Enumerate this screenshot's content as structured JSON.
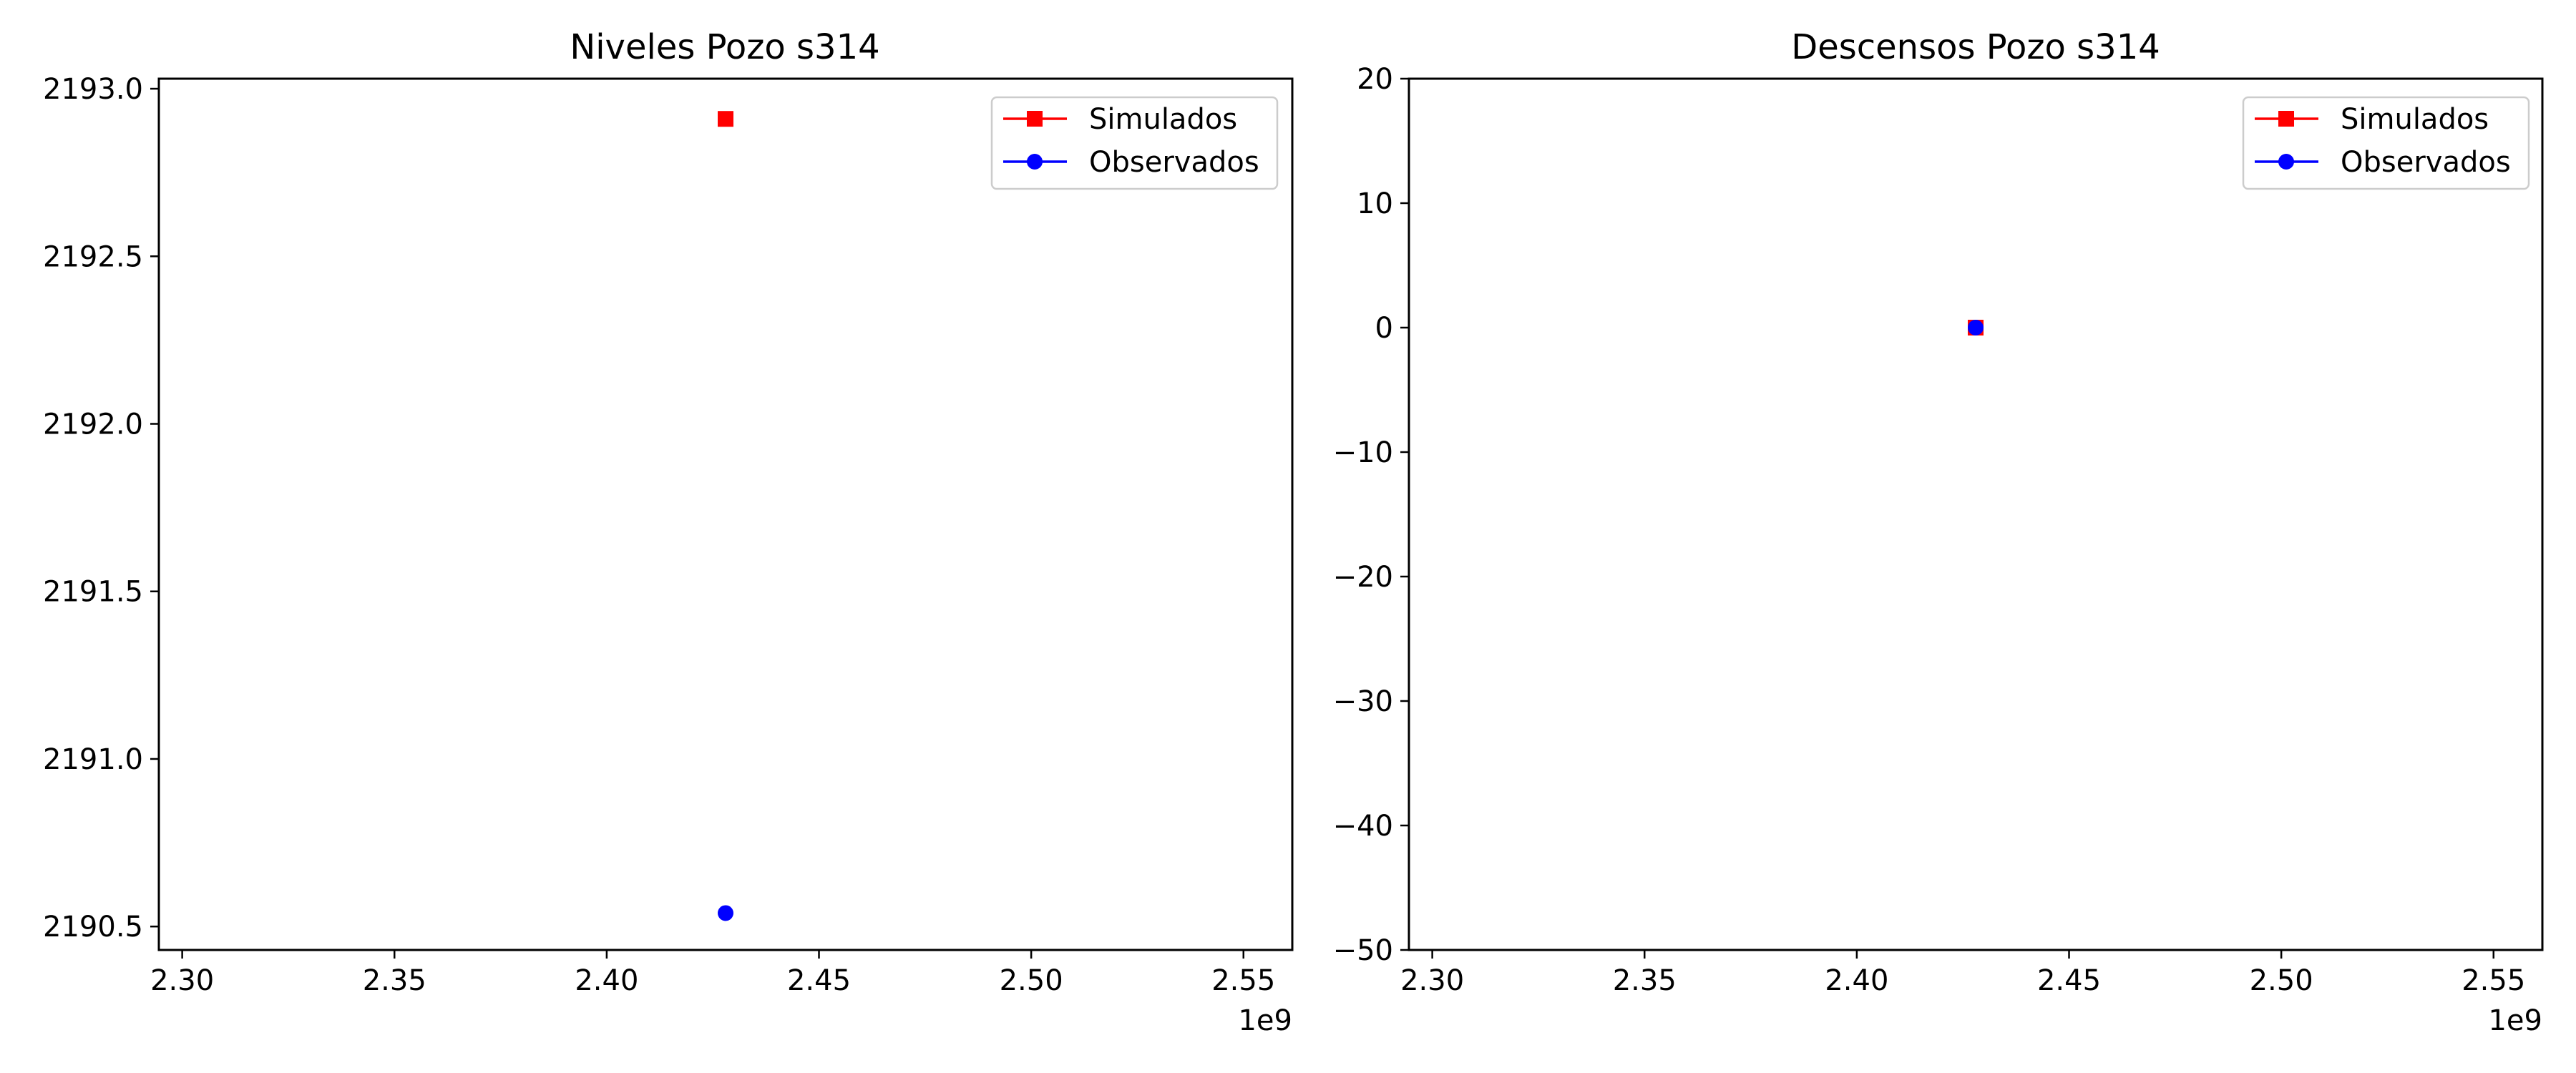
{
  "chart_data": [
    {
      "type": "scatter",
      "title": "Niveles Pozo s314",
      "xlabel": "",
      "ylabel": "",
      "x_offset_label": "1e9",
      "xlim": [
        2.2945,
        2.5615
      ],
      "ylim": [
        2190.43,
        2193.03
      ],
      "xticks": [
        2.3,
        2.35,
        2.4,
        2.45,
        2.5,
        2.55
      ],
      "xtick_labels": [
        "2.30",
        "2.35",
        "2.40",
        "2.45",
        "2.50",
        "2.55"
      ],
      "yticks": [
        2190.5,
        2191.0,
        2191.5,
        2192.0,
        2192.5,
        2193.0
      ],
      "ytick_labels": [
        "2190.5",
        "2191.0",
        "2191.5",
        "2192.0",
        "2192.5",
        "2193.0"
      ],
      "grid": false,
      "legend_position": "top-right",
      "series": [
        {
          "name": "Simulados",
          "color": "#ff0000",
          "marker": "square",
          "points": [
            {
              "x": 2.428,
              "y": 2192.91
            }
          ]
        },
        {
          "name": "Observados",
          "color": "#0000ff",
          "marker": "circle",
          "points": [
            {
              "x": 2.428,
              "y": 2190.54
            }
          ]
        }
      ]
    },
    {
      "type": "scatter",
      "title": "Descensos Pozo s314",
      "xlabel": "",
      "ylabel": "",
      "x_offset_label": "1e9",
      "xlim": [
        2.2945,
        2.5615
      ],
      "ylim": [
        -50,
        20
      ],
      "xticks": [
        2.3,
        2.35,
        2.4,
        2.45,
        2.5,
        2.55
      ],
      "xtick_labels": [
        "2.30",
        "2.35",
        "2.40",
        "2.45",
        "2.50",
        "2.55"
      ],
      "yticks": [
        -50,
        -40,
        -30,
        -20,
        -10,
        0,
        10,
        20
      ],
      "ytick_labels": [
        "−50",
        "−40",
        "−30",
        "−20",
        "−10",
        "0",
        "10",
        "20"
      ],
      "grid": false,
      "legend_position": "top-right",
      "series": [
        {
          "name": "Simulados",
          "color": "#ff0000",
          "marker": "square",
          "points": [
            {
              "x": 2.428,
              "y": 0
            }
          ]
        },
        {
          "name": "Observados",
          "color": "#0000ff",
          "marker": "circle",
          "points": [
            {
              "x": 2.428,
              "y": 0
            }
          ]
        }
      ]
    }
  ]
}
